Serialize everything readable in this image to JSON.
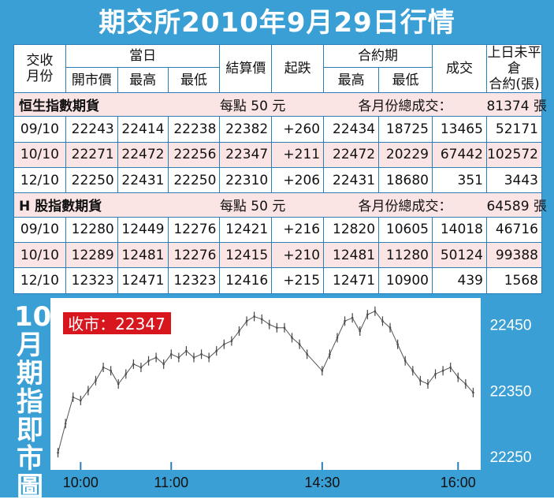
{
  "title": "期交所2010年9月29日行情",
  "table": {
    "headers": {
      "contract": "交收\n月份",
      "today": "當日",
      "open": "開市價",
      "high": "最高",
      "low": "最低",
      "settle": "結算價",
      "change": "起跌",
      "contract_period": "合約期",
      "cp_high": "最高",
      "cp_low": "最低",
      "volume": "成交",
      "oi": "上日未平倉\n合約(張)"
    },
    "sections": [
      {
        "name": "恒生指數期貨",
        "point_value": "每點 50 元",
        "total_label": "各月份總成交：",
        "total": "81374 張",
        "rows": [
          {
            "month": "09/10",
            "open": "22243",
            "high": "22414",
            "low": "22238",
            "settle": "22382",
            "change": "+260",
            "cp_high": "22434",
            "cp_low": "18725",
            "volume": "13465",
            "oi": "52171"
          },
          {
            "month": "10/10",
            "open": "22271",
            "high": "22472",
            "low": "22256",
            "settle": "22347",
            "change": "+211",
            "cp_high": "22472",
            "cp_low": "20229",
            "volume": "67442",
            "oi": "102572"
          },
          {
            "month": "12/10",
            "open": "22250",
            "high": "22431",
            "low": "22250",
            "settle": "22310",
            "change": "+206",
            "cp_high": "22431",
            "cp_low": "18680",
            "volume": "351",
            "oi": "3443"
          }
        ]
      },
      {
        "name": "H 股指數期貨",
        "point_value": "每點 50 元",
        "total_label": "各月份總成交：",
        "total": "64589 張",
        "rows": [
          {
            "month": "09/10",
            "open": "12280",
            "high": "12449",
            "low": "12276",
            "settle": "12421",
            "change": "+216",
            "cp_high": "12820",
            "cp_low": "10605",
            "volume": "14018",
            "oi": "46716"
          },
          {
            "month": "10/10",
            "open": "12289",
            "high": "12481",
            "low": "12276",
            "settle": "12415",
            "change": "+210",
            "cp_high": "12481",
            "cp_low": "11280",
            "volume": "50124",
            "oi": "99388"
          },
          {
            "month": "12/10",
            "open": "12323",
            "high": "12471",
            "low": "12323",
            "settle": "12416",
            "change": "+215",
            "cp_high": "12471",
            "cp_low": "10900",
            "volume": "439",
            "oi": "1568"
          }
        ]
      }
    ]
  },
  "chart_title": [
    "10",
    "月",
    "期",
    "指",
    "即",
    "市",
    "圖"
  ],
  "chart_data": {
    "type": "line",
    "close_label": "收市：22347",
    "x_ticks": [
      "10:00",
      "11:00",
      "14:30",
      "16:00"
    ],
    "y_ticks": [
      22250,
      22350,
      22450
    ],
    "ylim": [
      22230,
      22490
    ],
    "x": [
      "09:45",
      "09:50",
      "09:55",
      "10:00",
      "10:05",
      "10:10",
      "10:15",
      "10:20",
      "10:25",
      "10:30",
      "10:35",
      "10:40",
      "10:45",
      "10:50",
      "10:55",
      "11:00",
      "11:05",
      "11:10",
      "11:15",
      "11:20",
      "11:25",
      "11:30",
      "11:35",
      "11:40",
      "11:45",
      "11:50",
      "11:55",
      "12:00",
      "12:05",
      "12:10",
      "12:15",
      "12:20",
      "12:25",
      "12:30",
      "14:30",
      "14:35",
      "14:40",
      "14:45",
      "14:50",
      "14:55",
      "15:00",
      "15:05",
      "15:10",
      "15:15",
      "15:20",
      "15:25",
      "15:30",
      "15:35",
      "15:40",
      "15:45",
      "15:50",
      "15:55",
      "16:00",
      "16:05",
      "16:10"
    ],
    "values": [
      22256,
      22300,
      22340,
      22335,
      22350,
      22365,
      22385,
      22380,
      22360,
      22375,
      22390,
      22385,
      22395,
      22400,
      22390,
      22405,
      22400,
      22410,
      22400,
      22405,
      22400,
      22410,
      22420,
      22425,
      22440,
      22455,
      22462,
      22458,
      22450,
      22445,
      22445,
      22430,
      22420,
      22405,
      22380,
      22405,
      22430,
      22455,
      22460,
      22440,
      22465,
      22470,
      22455,
      22445,
      22420,
      22395,
      22380,
      22365,
      22360,
      22375,
      22380,
      22385,
      22370,
      22360,
      22347
    ],
    "xlabel": "",
    "ylabel": "",
    "grid": false
  },
  "colors": {
    "frame": "#3a9fd4",
    "row_highlight": "#fbe4e4",
    "close_badge": "#d7161d",
    "line": "#555555",
    "marker": "#2a7fb8"
  }
}
